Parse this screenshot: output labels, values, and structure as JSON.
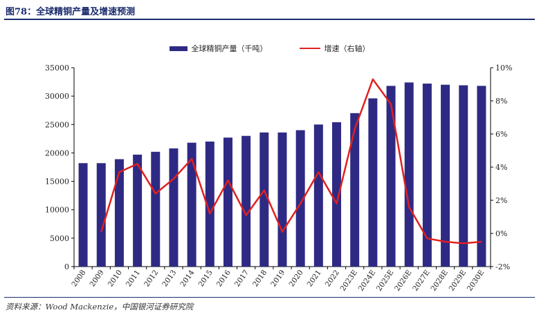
{
  "title": "图78：全球精铜产量及增速预测",
  "source": "资料来源：Wood Mackenzie，中国银河证券研究院",
  "colors": {
    "bar": "#2e2a84",
    "line": "#e02020",
    "title": "#1a2b6d"
  },
  "chart_data": {
    "type": "bar",
    "legend_position": "top-center",
    "grid": false,
    "categories": [
      "2008",
      "2009",
      "2010",
      "2011",
      "2012",
      "2013",
      "2014",
      "2015",
      "2016",
      "2017",
      "2018",
      "2019",
      "2020",
      "2021",
      "2022",
      "2023E",
      "2024E",
      "2025E",
      "2026E",
      "2027E",
      "2028E",
      "2029E",
      "2030E"
    ],
    "series": [
      {
        "name": "全球精铜产量（千吨）",
        "type": "bar",
        "axis": "left",
        "values": [
          18200,
          18200,
          18900,
          19700,
          20200,
          20800,
          21800,
          22000,
          22700,
          23000,
          23600,
          23600,
          24000,
          25000,
          25400,
          27000,
          29600,
          31800,
          32400,
          32200,
          32000,
          31900,
          31800
        ]
      },
      {
        "name": "增速（右轴）",
        "type": "line",
        "axis": "right",
        "values": [
          null,
          0.1,
          3.7,
          4.2,
          2.4,
          3.3,
          4.5,
          1.2,
          3.2,
          1.1,
          2.6,
          0.1,
          1.8,
          3.7,
          1.8,
          6.3,
          9.3,
          7.8,
          1.6,
          -0.3,
          -0.5,
          -0.6,
          -0.5
        ]
      }
    ],
    "y_left": {
      "min": 0,
      "max": 35000,
      "ticks": [
        "0",
        "5000",
        "10000",
        "15000",
        "20000",
        "25000",
        "30000",
        "35000"
      ]
    },
    "y_right": {
      "min": -2,
      "max": 10,
      "ticks": [
        "-2%",
        "0%",
        "2%",
        "4%",
        "6%",
        "8%",
        "10%"
      ]
    }
  }
}
